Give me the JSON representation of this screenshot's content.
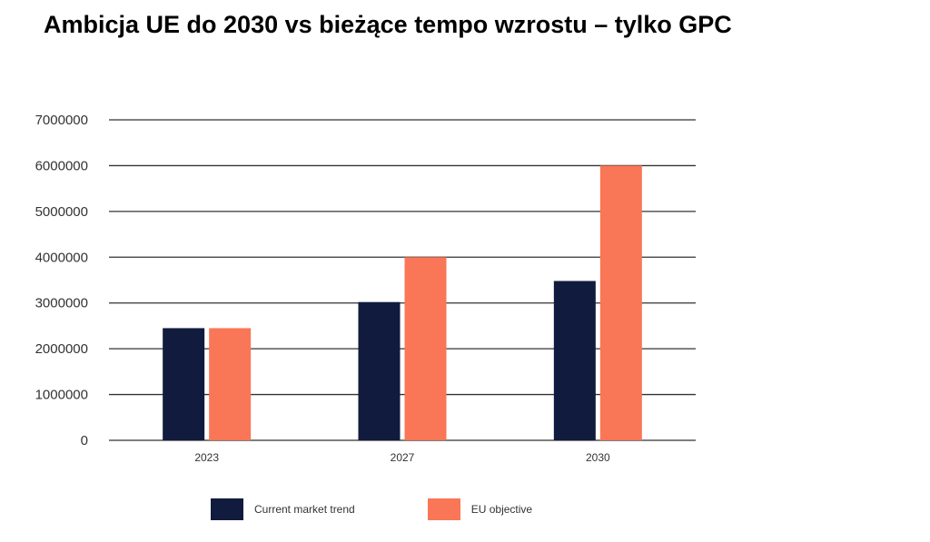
{
  "title": "Ambicja UE do 2030 vs bieżące tempo wzrostu – tylko GPC",
  "colors": {
    "series1": "#111b3d",
    "series2": "#f97657",
    "grid": "#333333"
  },
  "chart_data": {
    "type": "bar",
    "title": "Ambicja UE do 2030 vs bieżące tempo wzrostu – tylko GPC",
    "xlabel": "",
    "ylabel": "",
    "categories": [
      "2023",
      "2027",
      "2030"
    ],
    "series": [
      {
        "name": "Current market trend",
        "values": [
          2450000,
          3020000,
          3480000
        ]
      },
      {
        "name": "EU objective",
        "values": [
          2450000,
          4000000,
          6000000
        ]
      }
    ],
    "yticks": [
      "0",
      "1000000",
      "2000000",
      "3000000",
      "4000000",
      "5000000",
      "6000000",
      "7000000"
    ],
    "ylim": [
      0,
      7000000
    ],
    "grid": true,
    "legend_position": "bottom"
  }
}
